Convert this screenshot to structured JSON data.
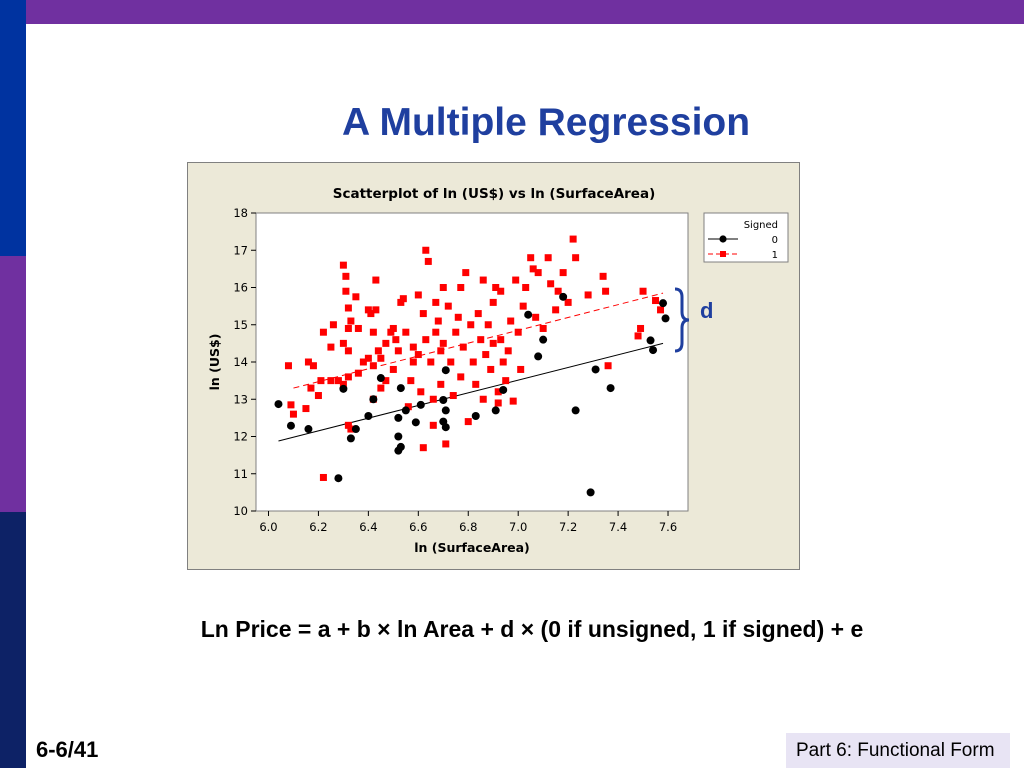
{
  "slide": {
    "title": "A Multiple Regression",
    "equation": "Ln Price = a + b × ln Area + d × (0 if unsigned, 1 if signed) + e",
    "brace_label": "d",
    "page_number": "6-6/41",
    "footer": "Part 6: Functional Form"
  },
  "colors": {
    "top_bar": "#7030a0",
    "accent_blue": "#1f3f9f",
    "series_0": "#000000",
    "series_1": "#ff0000"
  },
  "chart_data": {
    "type": "scatter",
    "title": "Scatterplot of ln (US$) vs ln (SurfaceArea)",
    "xlabel": "ln (SurfaceArea)",
    "ylabel": "ln (US$)",
    "xlim": [
      5.95,
      7.68
    ],
    "ylim": [
      10,
      18
    ],
    "xticks": [
      "6.0",
      "6.2",
      "6.4",
      "6.6",
      "6.8",
      "7.0",
      "7.2",
      "7.4",
      "7.6"
    ],
    "yticks": [
      "10",
      "11",
      "12",
      "13",
      "14",
      "15",
      "16",
      "17",
      "18"
    ],
    "grid": false,
    "legend": {
      "title": "Signed",
      "position": "top-right",
      "entries": [
        "0",
        "1"
      ]
    },
    "series": [
      {
        "name": "0",
        "marker": "circle",
        "line_style": "solid",
        "fit_line": [
          [
            6.04,
            11.88
          ],
          [
            7.58,
            14.5
          ]
        ],
        "points": [
          [
            6.04,
            12.87
          ],
          [
            6.09,
            12.29
          ],
          [
            6.16,
            12.2
          ],
          [
            6.28,
            10.88
          ],
          [
            6.3,
            13.28
          ],
          [
            6.33,
            11.95
          ],
          [
            6.35,
            12.2
          ],
          [
            6.4,
            12.55
          ],
          [
            6.42,
            13.0
          ],
          [
            6.45,
            13.57
          ],
          [
            6.52,
            12.5
          ],
          [
            6.52,
            12.0
          ],
          [
            6.52,
            11.62
          ],
          [
            6.53,
            11.72
          ],
          [
            6.53,
            13.3
          ],
          [
            6.55,
            12.7
          ],
          [
            6.59,
            12.38
          ],
          [
            6.61,
            12.85
          ],
          [
            6.7,
            12.98
          ],
          [
            6.7,
            12.4
          ],
          [
            6.71,
            12.25
          ],
          [
            6.71,
            12.7
          ],
          [
            6.71,
            13.78
          ],
          [
            6.83,
            12.55
          ],
          [
            6.91,
            12.7
          ],
          [
            6.94,
            13.25
          ],
          [
            7.04,
            15.27
          ],
          [
            7.08,
            14.15
          ],
          [
            7.1,
            14.6
          ],
          [
            7.18,
            15.75
          ],
          [
            7.23,
            12.7
          ],
          [
            7.29,
            10.5
          ],
          [
            7.31,
            13.8
          ],
          [
            7.37,
            13.3
          ],
          [
            7.53,
            14.58
          ],
          [
            7.54,
            14.32
          ],
          [
            7.58,
            15.58
          ],
          [
            7.59,
            15.17
          ]
        ]
      },
      {
        "name": "1",
        "marker": "square",
        "line_style": "dashed",
        "fit_line": [
          [
            6.1,
            13.3
          ],
          [
            7.58,
            15.85
          ]
        ],
        "points": [
          [
            6.08,
            13.9
          ],
          [
            6.09,
            12.85
          ],
          [
            6.1,
            12.6
          ],
          [
            6.15,
            12.75
          ],
          [
            6.16,
            14.0
          ],
          [
            6.17,
            13.3
          ],
          [
            6.18,
            13.9
          ],
          [
            6.2,
            13.1
          ],
          [
            6.21,
            13.5
          ],
          [
            6.22,
            14.8
          ],
          [
            6.22,
            10.9
          ],
          [
            6.25,
            14.4
          ],
          [
            6.25,
            13.5
          ],
          [
            6.26,
            15.0
          ],
          [
            6.28,
            13.5
          ],
          [
            6.3,
            13.4
          ],
          [
            6.3,
            14.5
          ],
          [
            6.3,
            16.6
          ],
          [
            6.31,
            16.3
          ],
          [
            6.31,
            15.9
          ],
          [
            6.32,
            15.45
          ],
          [
            6.32,
            14.9
          ],
          [
            6.32,
            14.3
          ],
          [
            6.32,
            13.6
          ],
          [
            6.32,
            12.3
          ],
          [
            6.33,
            12.2
          ],
          [
            6.33,
            15.1
          ],
          [
            6.35,
            15.75
          ],
          [
            6.36,
            13.7
          ],
          [
            6.36,
            14.9
          ],
          [
            6.38,
            14.0
          ],
          [
            6.4,
            15.4
          ],
          [
            6.4,
            14.1
          ],
          [
            6.41,
            15.3
          ],
          [
            6.42,
            14.8
          ],
          [
            6.42,
            13.0
          ],
          [
            6.42,
            13.9
          ],
          [
            6.43,
            15.4
          ],
          [
            6.43,
            16.2
          ],
          [
            6.44,
            14.3
          ],
          [
            6.45,
            13.3
          ],
          [
            6.45,
            14.1
          ],
          [
            6.47,
            13.5
          ],
          [
            6.47,
            14.5
          ],
          [
            6.49,
            14.8
          ],
          [
            6.5,
            14.9
          ],
          [
            6.5,
            13.8
          ],
          [
            6.51,
            14.6
          ],
          [
            6.52,
            14.3
          ],
          [
            6.53,
            15.6
          ],
          [
            6.54,
            15.7
          ],
          [
            6.55,
            14.8
          ],
          [
            6.56,
            12.8
          ],
          [
            6.57,
            13.5
          ],
          [
            6.58,
            14.0
          ],
          [
            6.58,
            14.4
          ],
          [
            6.6,
            15.8
          ],
          [
            6.6,
            14.2
          ],
          [
            6.61,
            13.2
          ],
          [
            6.62,
            15.3
          ],
          [
            6.62,
            11.7
          ],
          [
            6.63,
            17.0
          ],
          [
            6.63,
            14.6
          ],
          [
            6.64,
            16.7
          ],
          [
            6.65,
            14.0
          ],
          [
            6.66,
            13.0
          ],
          [
            6.66,
            12.3
          ],
          [
            6.67,
            15.6
          ],
          [
            6.67,
            14.8
          ],
          [
            6.68,
            15.1
          ],
          [
            6.69,
            14.3
          ],
          [
            6.69,
            13.4
          ],
          [
            6.7,
            14.5
          ],
          [
            6.7,
            16.0
          ],
          [
            6.71,
            11.8
          ],
          [
            6.72,
            15.5
          ],
          [
            6.73,
            14.0
          ],
          [
            6.74,
            13.1
          ],
          [
            6.75,
            14.8
          ],
          [
            6.76,
            15.2
          ],
          [
            6.77,
            13.6
          ],
          [
            6.77,
            16.0
          ],
          [
            6.78,
            14.4
          ],
          [
            6.79,
            16.4
          ],
          [
            6.8,
            12.4
          ],
          [
            6.81,
            15.0
          ],
          [
            6.82,
            14.0
          ],
          [
            6.83,
            13.4
          ],
          [
            6.84,
            15.3
          ],
          [
            6.85,
            14.6
          ],
          [
            6.86,
            16.2
          ],
          [
            6.86,
            13.0
          ],
          [
            6.87,
            14.2
          ],
          [
            6.88,
            15.0
          ],
          [
            6.89,
            13.8
          ],
          [
            6.9,
            15.6
          ],
          [
            6.9,
            14.5
          ],
          [
            6.91,
            16.0
          ],
          [
            6.92,
            13.2
          ],
          [
            6.92,
            12.9
          ],
          [
            6.93,
            14.6
          ],
          [
            6.93,
            15.9
          ],
          [
            6.94,
            14.0
          ],
          [
            6.95,
            13.5
          ],
          [
            6.96,
            14.3
          ],
          [
            6.97,
            15.1
          ],
          [
            6.98,
            12.95
          ],
          [
            6.99,
            16.2
          ],
          [
            7.0,
            14.8
          ],
          [
            7.01,
            13.8
          ],
          [
            7.02,
            15.5
          ],
          [
            7.03,
            16.0
          ],
          [
            7.05,
            16.8
          ],
          [
            7.06,
            16.5
          ],
          [
            7.07,
            15.2
          ],
          [
            7.08,
            16.4
          ],
          [
            7.1,
            14.9
          ],
          [
            7.12,
            16.8
          ],
          [
            7.13,
            16.1
          ],
          [
            7.15,
            15.4
          ],
          [
            7.16,
            15.9
          ],
          [
            7.18,
            16.4
          ],
          [
            7.2,
            15.6
          ],
          [
            7.22,
            17.3
          ],
          [
            7.23,
            16.8
          ],
          [
            7.28,
            15.8
          ],
          [
            7.34,
            16.3
          ],
          [
            7.35,
            15.9
          ],
          [
            7.36,
            13.9
          ],
          [
            7.48,
            14.7
          ],
          [
            7.49,
            14.9
          ],
          [
            7.5,
            15.9
          ],
          [
            7.55,
            15.65
          ],
          [
            7.57,
            15.4
          ]
        ]
      }
    ]
  }
}
